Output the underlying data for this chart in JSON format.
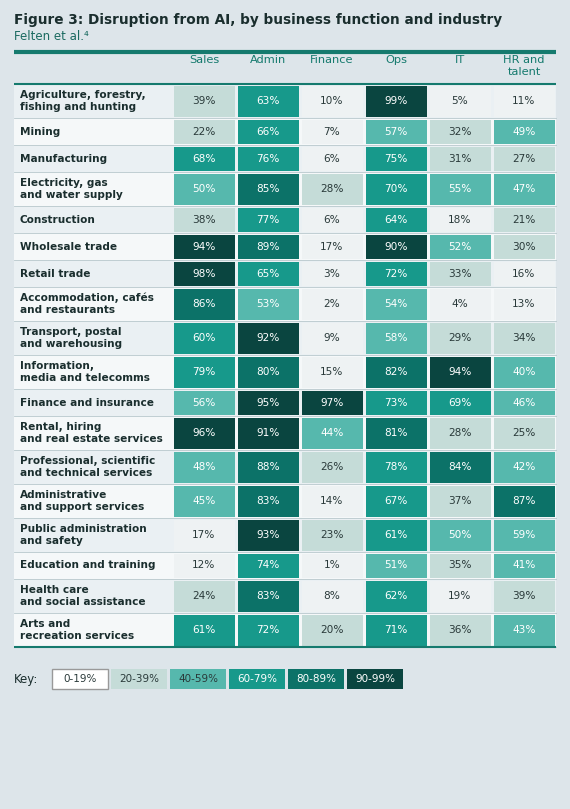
{
  "title": "Figure 3: Disruption from AI, by business function and industry",
  "subtitle": "Felten et al.⁴",
  "columns": [
    "Sales",
    "Admin",
    "Finance",
    "Ops",
    "IT",
    "HR and\ntalent"
  ],
  "rows": [
    {
      "label": "Agriculture, forestry,\nfishing and hunting",
      "values": [
        39,
        63,
        10,
        99,
        5,
        11
      ],
      "two_line": true
    },
    {
      "label": "Mining",
      "values": [
        22,
        66,
        7,
        57,
        32,
        49
      ],
      "two_line": false
    },
    {
      "label": "Manufacturing",
      "values": [
        68,
        76,
        6,
        75,
        31,
        27
      ],
      "two_line": false
    },
    {
      "label": "Electricity, gas\nand water supply",
      "values": [
        50,
        85,
        28,
        70,
        55,
        47
      ],
      "two_line": true
    },
    {
      "label": "Construction",
      "values": [
        38,
        77,
        6,
        64,
        18,
        21
      ],
      "two_line": false
    },
    {
      "label": "Wholesale trade",
      "values": [
        94,
        89,
        17,
        90,
        52,
        30
      ],
      "two_line": false
    },
    {
      "label": "Retail trade",
      "values": [
        98,
        65,
        3,
        72,
        33,
        16
      ],
      "two_line": false
    },
    {
      "label": "Accommodation, cafés\nand restaurants",
      "values": [
        86,
        53,
        2,
        54,
        4,
        13
      ],
      "two_line": true
    },
    {
      "label": "Transport, postal\nand warehousing",
      "values": [
        60,
        92,
        9,
        58,
        29,
        34
      ],
      "two_line": true
    },
    {
      "label": "Information,\nmedia and telecomms",
      "values": [
        79,
        80,
        15,
        82,
        94,
        40
      ],
      "two_line": true
    },
    {
      "label": "Finance and insurance",
      "values": [
        56,
        95,
        97,
        73,
        69,
        46
      ],
      "two_line": false
    },
    {
      "label": "Rental, hiring\nand real estate services",
      "values": [
        96,
        91,
        44,
        81,
        28,
        25
      ],
      "two_line": true
    },
    {
      "label": "Professional, scientific\nand technical services",
      "values": [
        48,
        88,
        26,
        78,
        84,
        42
      ],
      "two_line": true
    },
    {
      "label": "Administrative\nand support services",
      "values": [
        45,
        83,
        14,
        67,
        37,
        87
      ],
      "two_line": true
    },
    {
      "label": "Public administration\nand safety",
      "values": [
        17,
        93,
        23,
        61,
        50,
        59
      ],
      "two_line": true
    },
    {
      "label": "Education and training",
      "values": [
        12,
        74,
        1,
        51,
        35,
        41
      ],
      "two_line": false
    },
    {
      "label": "Health care\nand social assistance",
      "values": [
        24,
        83,
        8,
        62,
        19,
        39
      ],
      "two_line": true
    },
    {
      "label": "Arts and\nrecreation services",
      "values": [
        61,
        72,
        20,
        71,
        36,
        43
      ],
      "two_line": true
    }
  ],
  "color_ranges": [
    {
      "range": "0-19%",
      "color": "#eef2f3"
    },
    {
      "range": "20-39%",
      "color": "#c5dcd8"
    },
    {
      "range": "40-59%",
      "color": "#56b8ad"
    },
    {
      "range": "60-79%",
      "color": "#17998b"
    },
    {
      "range": "80-89%",
      "color": "#0c7268"
    },
    {
      "range": "90-99%",
      "color": "#0a4540"
    }
  ],
  "bg_color": "#dde5ea",
  "header_area_color": "#dde5ea",
  "row_alt_color": "#eaf0f3",
  "row_white_color": "#f5f8f9",
  "header_line_color": "#157a6e",
  "divider_color": "#b8c8cc",
  "label_color": "#1a2e2e",
  "col_header_color": "#157a6e",
  "text_dark": "#2a3a3a",
  "text_light": "#ffffff"
}
